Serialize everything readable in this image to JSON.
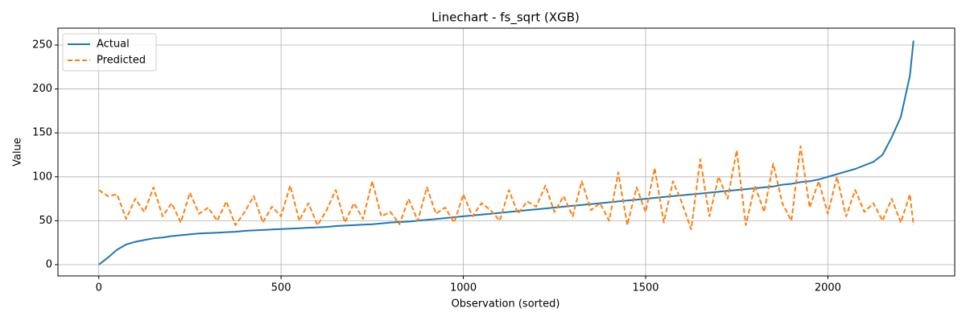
{
  "chart_data": {
    "type": "line",
    "title": "Linechart - fs_sqrt (XGB)",
    "x_label": "Observation (sorted)",
    "y_label": "Value",
    "x": [
      0,
      25,
      50,
      75,
      100,
      125,
      150,
      175,
      200,
      225,
      250,
      275,
      300,
      325,
      350,
      375,
      400,
      425,
      450,
      475,
      500,
      525,
      550,
      575,
      600,
      625,
      650,
      675,
      700,
      725,
      750,
      775,
      800,
      825,
      850,
      875,
      900,
      925,
      950,
      975,
      1000,
      1025,
      1050,
      1075,
      1100,
      1125,
      1150,
      1175,
      1200,
      1225,
      1250,
      1275,
      1300,
      1325,
      1350,
      1375,
      1400,
      1425,
      1450,
      1475,
      1500,
      1525,
      1550,
      1575,
      1600,
      1625,
      1650,
      1675,
      1700,
      1725,
      1750,
      1775,
      1800,
      1825,
      1850,
      1875,
      1900,
      1925,
      1950,
      1975,
      2000,
      2025,
      2050,
      2075,
      2100,
      2125,
      2150,
      2175,
      2200,
      2225,
      2235
    ],
    "series": [
      {
        "name": "Actual",
        "color": "#1f77b4",
        "dashed": false,
        "values": [
          0,
          8,
          17,
          23,
          26,
          28,
          30,
          31,
          32.5,
          33.5,
          34.5,
          35.5,
          36,
          36.5,
          37,
          37.5,
          38.5,
          39,
          39.5,
          40,
          40.5,
          41,
          41.5,
          42,
          42.5,
          43,
          44,
          44.5,
          45,
          45.5,
          46,
          47,
          48,
          48.5,
          49,
          50,
          51,
          52,
          53,
          54,
          55,
          56,
          57,
          58,
          59,
          60,
          61,
          62,
          63,
          64,
          65,
          66,
          67,
          68,
          69,
          70,
          71,
          72,
          73,
          74,
          75,
          76,
          77,
          78,
          79,
          80,
          81,
          82,
          83,
          84,
          85,
          86,
          87,
          88,
          89,
          91,
          92,
          94,
          95,
          97,
          100,
          103,
          106,
          109,
          113,
          117,
          125,
          145,
          168,
          215,
          255
        ]
      },
      {
        "name": "Predicted",
        "color": "#ff7f0e",
        "dashed": true,
        "values": [
          85,
          78,
          80,
          52,
          75,
          60,
          88,
          55,
          70,
          48,
          82,
          58,
          65,
          50,
          72,
          45,
          60,
          78,
          48,
          66,
          55,
          90,
          50,
          70,
          45,
          62,
          85,
          48,
          70,
          52,
          95,
          55,
          60,
          46,
          75,
          50,
          88,
          58,
          65,
          48,
          80,
          55,
          70,
          62,
          50,
          85,
          58,
          72,
          66,
          90,
          60,
          78,
          55,
          95,
          62,
          70,
          50,
          105,
          45,
          88,
          60,
          110,
          48,
          95,
          70,
          40,
          120,
          55,
          100,
          75,
          130,
          45,
          90,
          60,
          115,
          70,
          50,
          135,
          65,
          95,
          58,
          100,
          55,
          85,
          60,
          70,
          50,
          75,
          48,
          80,
          45
        ]
      }
    ],
    "xlim": [
      -112,
      2348
    ],
    "ylim": [
      -12.8,
      269.2
    ],
    "xticks": [
      0,
      500,
      1000,
      1500,
      2000
    ],
    "yticks": [
      0,
      50,
      100,
      150,
      200,
      250
    ],
    "grid": true,
    "legend": "upper left"
  }
}
